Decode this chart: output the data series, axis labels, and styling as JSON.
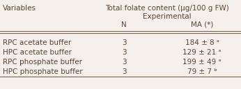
{
  "title_line1": "Total folate content (μg/100 g FW)",
  "title_line2": "Experimental",
  "col_header_n": "N",
  "col_header_ma": "MA (*)",
  "row_labels": [
    "RPC acetate buffer",
    "HPC acetate buffer",
    "RPC phosphate buffer",
    "HPC phosphate buffer"
  ],
  "n_values": [
    "3",
    "3",
    "3",
    "3"
  ],
  "ma_values": [
    "184 ± 8 ᵃ",
    "129 ± 21 ᵃ",
    "199 ± 49 ᵃ",
    "79 ± 7 ᵇ"
  ],
  "header_col": "Variables",
  "bg_color": "#f5f0eb",
  "text_color": "#5b4535",
  "font_size": 7.5,
  "line_color": "#7a6555"
}
